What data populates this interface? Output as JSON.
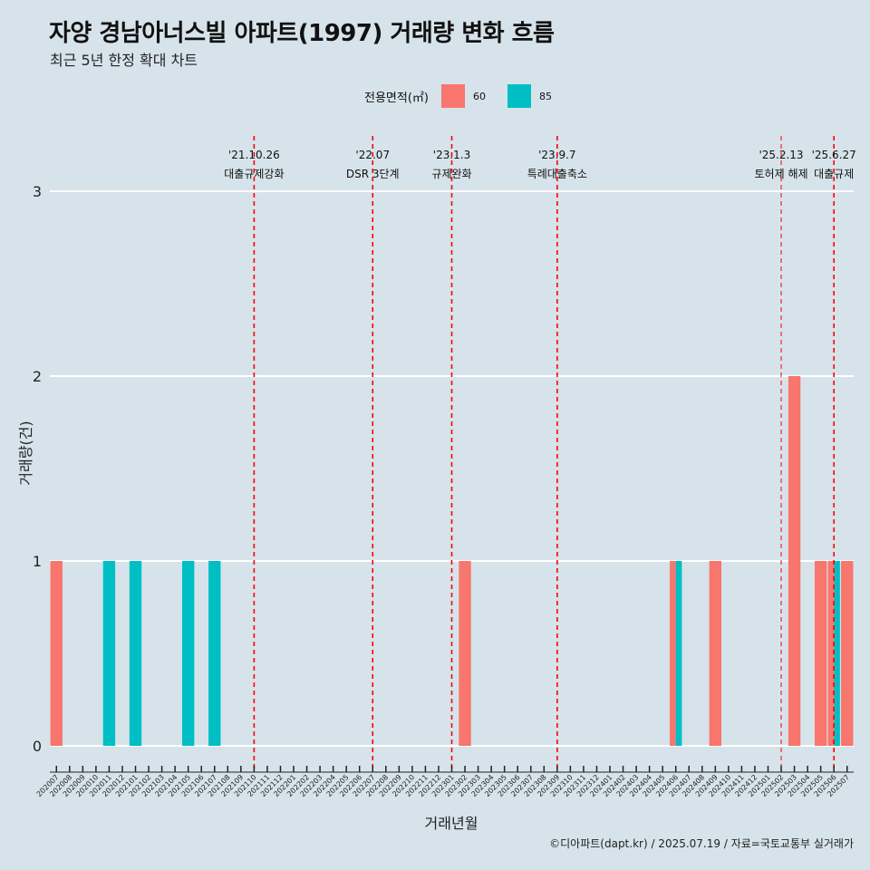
{
  "header": {
    "title": "자양 경남아너스빌 아파트(1997) 거래량 변화 흐름",
    "subtitle": "최근 5년 한정 확대 차트"
  },
  "legend": {
    "title": "전용면적(㎡)",
    "items": [
      {
        "label": "60",
        "color": "#f8766d"
      },
      {
        "label": "85",
        "color": "#00bfc4"
      }
    ]
  },
  "caption": "©디아파트(dapt.kr) / 2025.07.19 / 자료=국토교통부 실거래가",
  "chart_data": {
    "type": "bar",
    "xlabel": "거래년월",
    "ylabel": "거래량(건)",
    "ylim": [
      0,
      3
    ],
    "yticks": [
      0,
      1,
      2,
      3
    ],
    "grid": "horizontal",
    "legend_position": "top",
    "categories": [
      "202007",
      "202008",
      "202009",
      "202010",
      "202011",
      "202012",
      "202101",
      "202102",
      "202103",
      "202104",
      "202105",
      "202106",
      "202107",
      "202108",
      "202109",
      "202110",
      "202111",
      "202112",
      "202201",
      "202202",
      "202203",
      "202204",
      "202205",
      "202206",
      "202207",
      "202208",
      "202209",
      "202210",
      "202211",
      "202212",
      "202301",
      "202302",
      "202303",
      "202304",
      "202305",
      "202306",
      "202307",
      "202308",
      "202309",
      "202310",
      "202311",
      "202312",
      "202401",
      "202402",
      "202403",
      "202404",
      "202405",
      "202406",
      "202407",
      "202408",
      "202409",
      "202410",
      "202411",
      "202412",
      "202501",
      "202502",
      "202503",
      "202504",
      "202505",
      "202506",
      "202507"
    ],
    "series": [
      {
        "name": "60",
        "color": "#f8766d",
        "values": [
          1,
          0,
          0,
          0,
          0,
          0,
          0,
          0,
          0,
          0,
          0,
          0,
          0,
          0,
          0,
          0,
          0,
          0,
          0,
          0,
          0,
          0,
          0,
          0,
          0,
          0,
          0,
          0,
          0,
          0,
          0,
          1,
          0,
          0,
          0,
          0,
          0,
          0,
          0,
          0,
          0,
          0,
          0,
          0,
          0,
          0,
          0,
          1,
          0,
          0,
          1,
          0,
          0,
          0,
          0,
          0,
          2,
          0,
          1,
          1,
          1
        ]
      },
      {
        "name": "85",
        "color": "#00bfc4",
        "values": [
          0,
          0,
          0,
          0,
          1,
          0,
          1,
          0,
          0,
          0,
          1,
          0,
          1,
          0,
          0,
          0,
          0,
          0,
          0,
          0,
          0,
          0,
          0,
          0,
          0,
          0,
          0,
          0,
          0,
          0,
          0,
          0,
          0,
          0,
          0,
          0,
          0,
          0,
          0,
          0,
          0,
          0,
          0,
          0,
          0,
          0,
          0,
          1,
          0,
          0,
          0,
          0,
          0,
          0,
          0,
          0,
          0,
          0,
          0,
          1,
          0
        ]
      }
    ],
    "events": [
      {
        "month": "202110",
        "date": "'21.10.26",
        "label": "대출규제강화"
      },
      {
        "month": "202207",
        "date": "'22.07",
        "label": "DSR 3단계"
      },
      {
        "month": "202301",
        "date": "'23.1.3",
        "label": "규제완화"
      },
      {
        "month": "202309",
        "date": "'23.9.7",
        "label": "특례대출축소"
      },
      {
        "month": "202502",
        "date": "'25.2.13",
        "label": "토허제 해제"
      },
      {
        "month": "202506",
        "date": "'25.6.27",
        "label": "대출규제"
      }
    ]
  }
}
